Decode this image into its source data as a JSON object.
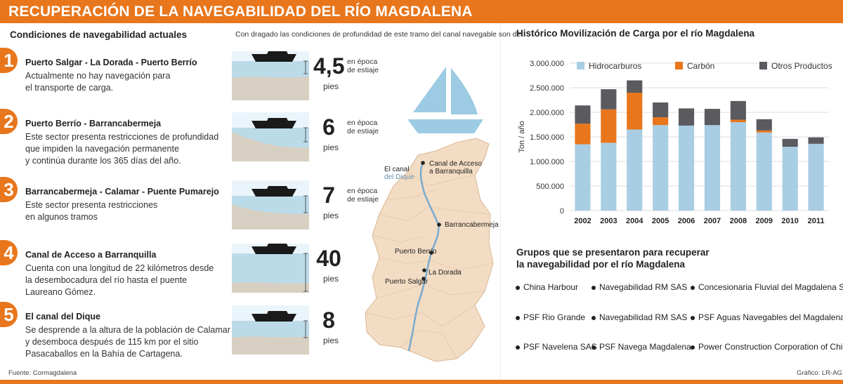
{
  "header": {
    "title": "RECUPERACIÓN DE LA NAVEGABILIDAD DEL RÍO MAGDALENA"
  },
  "left": {
    "section_title": "Condiciones de navegabilidad actuales",
    "dredge_note": "Con dragado las condiciones de profundidad de este tramo del canal navegable son de",
    "conditions": [
      {
        "num": "1",
        "title": "Puerto Salgar - La Dorada - Puerto Berrío",
        "desc": [
          "Actualmente no hay navegación para",
          "el transporte de carga."
        ],
        "depth": "4,5",
        "unit": "pies",
        "season": [
          "en época",
          "de estiaje"
        ]
      },
      {
        "num": "2",
        "title": "Puerto Berrío - Barrancabermeja",
        "desc": [
          "Este sector presenta restricciones de profundidad",
          "que impiden la navegación permanente",
          "y continúa durante los 365 días del año."
        ],
        "depth": "6",
        "unit": "pies",
        "season": [
          "en época",
          "de estiaje"
        ]
      },
      {
        "num": "3",
        "title": "Barrancabermeja - Calamar  - Puente Pumarejo",
        "desc": [
          "Este sector presenta restricciones",
          "en algunos tramos"
        ],
        "depth": "7",
        "unit": "pies",
        "season": [
          "en época",
          "de estiaje"
        ]
      },
      {
        "num": "4",
        "title": "Canal de Acceso a Barranquilla",
        "desc": [
          "Cuenta con una longitud de 22 kilómetros desde",
          "la desembocadura del río hasta el puente",
          "Laureano Gómez."
        ],
        "depth": "40",
        "unit": "pies"
      },
      {
        "num": "5",
        "title": "El canal del Dique",
        "desc": [
          "Se desprende a la altura de la población de Calamar",
          "y desemboca después de 115 km por el sitio",
          "Pasacaballos en la Bahía de Cartagena."
        ],
        "depth": "8",
        "unit": "pies"
      }
    ],
    "map": {
      "canal_dique": [
        "El canal",
        "del Dique"
      ],
      "canal_acceso": [
        "Canal de Acceso",
        "a Barranquilla"
      ],
      "barrancabermeja": "Barrancabermeja",
      "puerto_berrio": "Puerto Berrío",
      "la_dorada": "La Dorada",
      "puerto_salgar": "Puerto Salgar"
    },
    "source": "Fuente: Cormagdalena"
  },
  "chart_data": {
    "type": "bar",
    "stacked": true,
    "title": "Histórico Movilización de Carga por el río Magdalena",
    "ylabel": "Ton / año",
    "xlabel": "",
    "ylim": [
      0,
      3000000
    ],
    "yticks": [
      "0",
      "500.000",
      "1.000.000",
      "1.500.000",
      "2.000.000",
      "2.500.000",
      "3.000.000"
    ],
    "ytick_values": [
      0,
      500000,
      1000000,
      1500000,
      2000000,
      2500000,
      3000000
    ],
    "categories": [
      "2002",
      "2003",
      "2004",
      "2005",
      "2006",
      "2007",
      "2008",
      "2009",
      "2010",
      "2011"
    ],
    "series": [
      {
        "name": "Hidrocarburos",
        "color": "#a9cde3",
        "values": [
          1350000,
          1380000,
          1650000,
          1740000,
          1730000,
          1740000,
          1800000,
          1590000,
          1300000,
          1360000
        ]
      },
      {
        "name": "Carbón",
        "color": "#e8761c",
        "values": [
          420000,
          680000,
          750000,
          160000,
          0,
          0,
          50000,
          40000,
          0,
          0
        ]
      },
      {
        "name": "Otros Productos",
        "color": "#5a5a5f",
        "values": [
          370000,
          410000,
          250000,
          300000,
          350000,
          330000,
          380000,
          230000,
          160000,
          130000
        ]
      }
    ],
    "legend_position": "top",
    "grid": true
  },
  "groups": {
    "title": [
      "Grupos que se presentaron para recuperar",
      "la navegabilidad por el río Magdalena"
    ],
    "items": [
      "China Harbour",
      "Navegabilidad RM SAS",
      "Concesionaria Fluvial del Magdalena SAS",
      "PSF Rio Grande",
      "Navegabilidad RM SAS",
      "PSF Aguas Navegables del Magdalena SA",
      "PSF Navelena SAS",
      "PSF Navega Magdalena",
      "Power Construction Corporation of China"
    ]
  },
  "credit": "Gráfico: LR-AG",
  "colors": {
    "accent": "#e8761c",
    "water": "#bcdbe9",
    "sand": "#d7cfc2",
    "map": "#f3dcc4",
    "boat_icon": "#9ccbe3"
  }
}
